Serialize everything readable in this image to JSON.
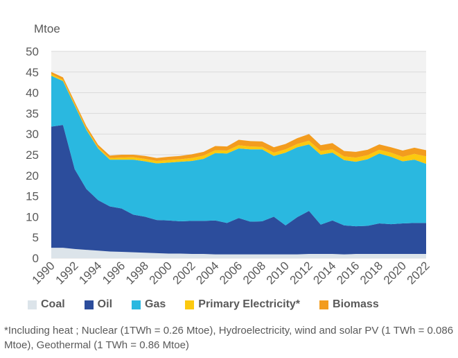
{
  "chart_data": {
    "type": "area",
    "stacked": true,
    "ylabel": "Mtoe",
    "ylim": [
      0,
      50
    ],
    "yticks": [
      0,
      5,
      10,
      15,
      20,
      25,
      30,
      35,
      40,
      45,
      50
    ],
    "xlim": [
      1990,
      2022
    ],
    "xticks": [
      1990,
      1992,
      1994,
      1996,
      1998,
      2000,
      2002,
      2004,
      2006,
      2008,
      2010,
      2012,
      2014,
      2016,
      2018,
      2020,
      2022
    ],
    "grid": true,
    "legend_position": "bottom",
    "x": [
      1990,
      1991,
      1992,
      1993,
      1994,
      1995,
      1996,
      1997,
      1998,
      1999,
      2000,
      2001,
      2002,
      2003,
      2004,
      2005,
      2006,
      2007,
      2008,
      2009,
      2010,
      2011,
      2012,
      2013,
      2014,
      2015,
      2016,
      2017,
      2018,
      2019,
      2020,
      2021,
      2022
    ],
    "series": [
      {
        "name": "Coal",
        "color": "#dce4ea",
        "values": [
          2.5,
          2.5,
          2.2,
          2.0,
          1.8,
          1.6,
          1.5,
          1.4,
          1.3,
          1.2,
          1.1,
          1.1,
          1.0,
          1.0,
          0.9,
          0.9,
          0.9,
          0.9,
          0.9,
          0.9,
          0.9,
          0.9,
          1.0,
          1.0,
          1.0,
          0.9,
          1.0,
          1.0,
          1.0,
          1.0,
          1.0,
          1.0,
          1.0
        ]
      },
      {
        "name": "Oil",
        "color": "#2c4d9c",
        "values": [
          29.3,
          29.7,
          19.3,
          14.7,
          12.2,
          10.9,
          10.5,
          9.1,
          8.7,
          8.0,
          8.0,
          7.8,
          8.0,
          8.0,
          8.2,
          7.6,
          8.8,
          7.9,
          8.0,
          9.1,
          7.0,
          9.0,
          10.4,
          7.1,
          8.1,
          7.0,
          6.7,
          6.8,
          7.4,
          7.2,
          7.4,
          7.5,
          7.5
        ]
      },
      {
        "name": "Gas",
        "color": "#2ab8e0",
        "values": [
          12.3,
          10.6,
          15.4,
          14.3,
          12.5,
          11.3,
          11.8,
          13.3,
          13.4,
          13.7,
          14.0,
          14.4,
          14.5,
          15.0,
          16.3,
          16.8,
          16.8,
          17.5,
          17.4,
          14.7,
          17.6,
          16.9,
          16.1,
          16.9,
          16.4,
          15.8,
          15.6,
          16.1,
          16.9,
          16.3,
          15.0,
          15.3,
          14.3
        ]
      },
      {
        "name": "Primary Electricity*",
        "color": "#fcc90f",
        "values": [
          0.4,
          0.3,
          0.3,
          0.3,
          0.3,
          0.4,
          0.5,
          0.6,
          0.6,
          0.6,
          0.6,
          0.6,
          0.7,
          0.8,
          0.7,
          0.7,
          0.8,
          0.7,
          0.6,
          0.8,
          0.8,
          0.8,
          0.9,
          0.9,
          0.8,
          0.9,
          1.0,
          1.0,
          0.9,
          1.0,
          1.1,
          1.4,
          1.8
        ]
      },
      {
        "name": "Biomass",
        "color": "#f39c1e",
        "values": [
          0.5,
          0.6,
          0.6,
          0.6,
          0.6,
          0.6,
          0.7,
          0.6,
          0.7,
          0.7,
          0.8,
          0.8,
          0.9,
          0.9,
          1.0,
          1.0,
          1.3,
          1.3,
          1.3,
          1.3,
          1.3,
          1.4,
          1.6,
          1.4,
          1.5,
          1.3,
          1.4,
          1.3,
          1.3,
          1.3,
          1.5,
          1.5,
          1.5
        ]
      }
    ]
  },
  "legend_labels": [
    "Coal",
    "Oil",
    "Gas",
    "Primary Electricity*",
    "Biomass"
  ],
  "footnote": "*Including heat ; Nuclear (1TWh = 0.26 Mtoe), Hydroelectricity, wind and solar PV (1 TWh = 0.086 Mtoe), Geothermal (1 TWh = 0.86 Mtoe)"
}
